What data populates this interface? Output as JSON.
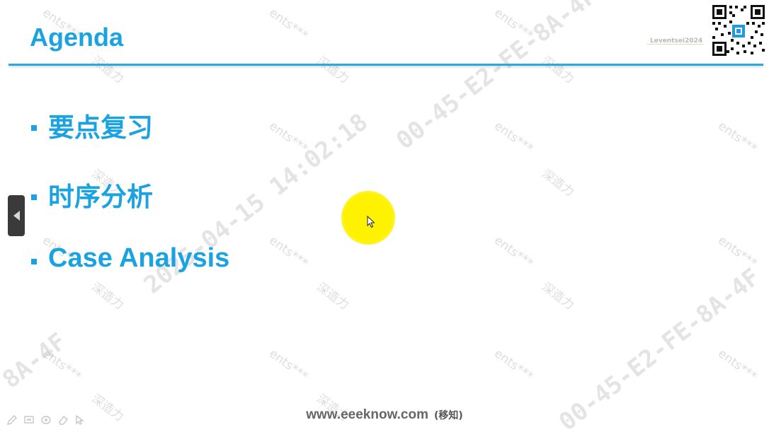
{
  "slide": {
    "title": "Agenda",
    "brand_mark": "Leventsei2024",
    "bullets": [
      {
        "text": "要点复习"
      },
      {
        "text": "时序分析"
      },
      {
        "text": "Case Analysis"
      }
    ]
  },
  "footer": {
    "url": "www.eeeknow.com",
    "suffix": "(移知)"
  },
  "watermark": {
    "user_mark": "ents***",
    "company_mark": "深造力",
    "stamp_datetime": "2025-04-15 14:02:18",
    "stamp_id": "00-45-E2-FE-8A-4F",
    "stamp_id_tail": "8A-4F"
  },
  "controls": {
    "prev_slide": "previous-slide",
    "toolbar": [
      "pen-icon",
      "screen-icon",
      "highlighter-icon",
      "eraser-icon",
      "pointer-icon"
    ]
  },
  "colors": {
    "accent": "#1aa3e0",
    "rule": "#29a9e0",
    "pointer_highlight": "#fff200"
  }
}
